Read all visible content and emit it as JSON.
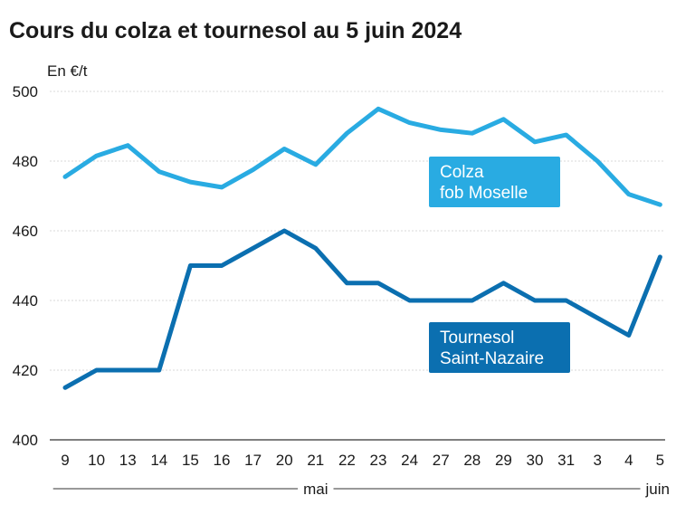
{
  "chart_data": {
    "type": "line",
    "title": "Cours du colza et tournesol au 5 juin 2024",
    "ylabel": "En €/t",
    "ylim": [
      400,
      500
    ],
    "yticks": [
      400,
      420,
      440,
      460,
      480,
      500
    ],
    "grid": true,
    "categories": [
      "9",
      "10",
      "13",
      "14",
      "15",
      "16",
      "17",
      "20",
      "21",
      "22",
      "23",
      "24",
      "27",
      "28",
      "29",
      "30",
      "31",
      "3",
      "4",
      "5"
    ],
    "months": [
      {
        "label": "mai",
        "from": "9",
        "to": "31"
      },
      {
        "label": "juin",
        "from": "3",
        "to": "5"
      }
    ],
    "series": [
      {
        "name": "Colza fob Moselle",
        "label_lines": [
          "Colza",
          "fob Moselle"
        ],
        "color": "#29abe2",
        "values": [
          475.5,
          481.5,
          484.5,
          477,
          474,
          472.5,
          477.5,
          483.5,
          479,
          488,
          495,
          491,
          489,
          488,
          492,
          485.5,
          487.5,
          480,
          470.5,
          467.5
        ]
      },
      {
        "name": "Tournesol Saint-Nazaire",
        "label_lines": [
          "Tournesol",
          "Saint-Nazaire"
        ],
        "color": "#0b6fb0",
        "values": [
          415,
          420,
          420,
          420,
          450,
          450,
          455,
          460,
          455,
          445,
          445,
          440,
          440,
          440,
          445,
          440,
          440,
          435,
          430,
          452.5
        ]
      }
    ]
  }
}
